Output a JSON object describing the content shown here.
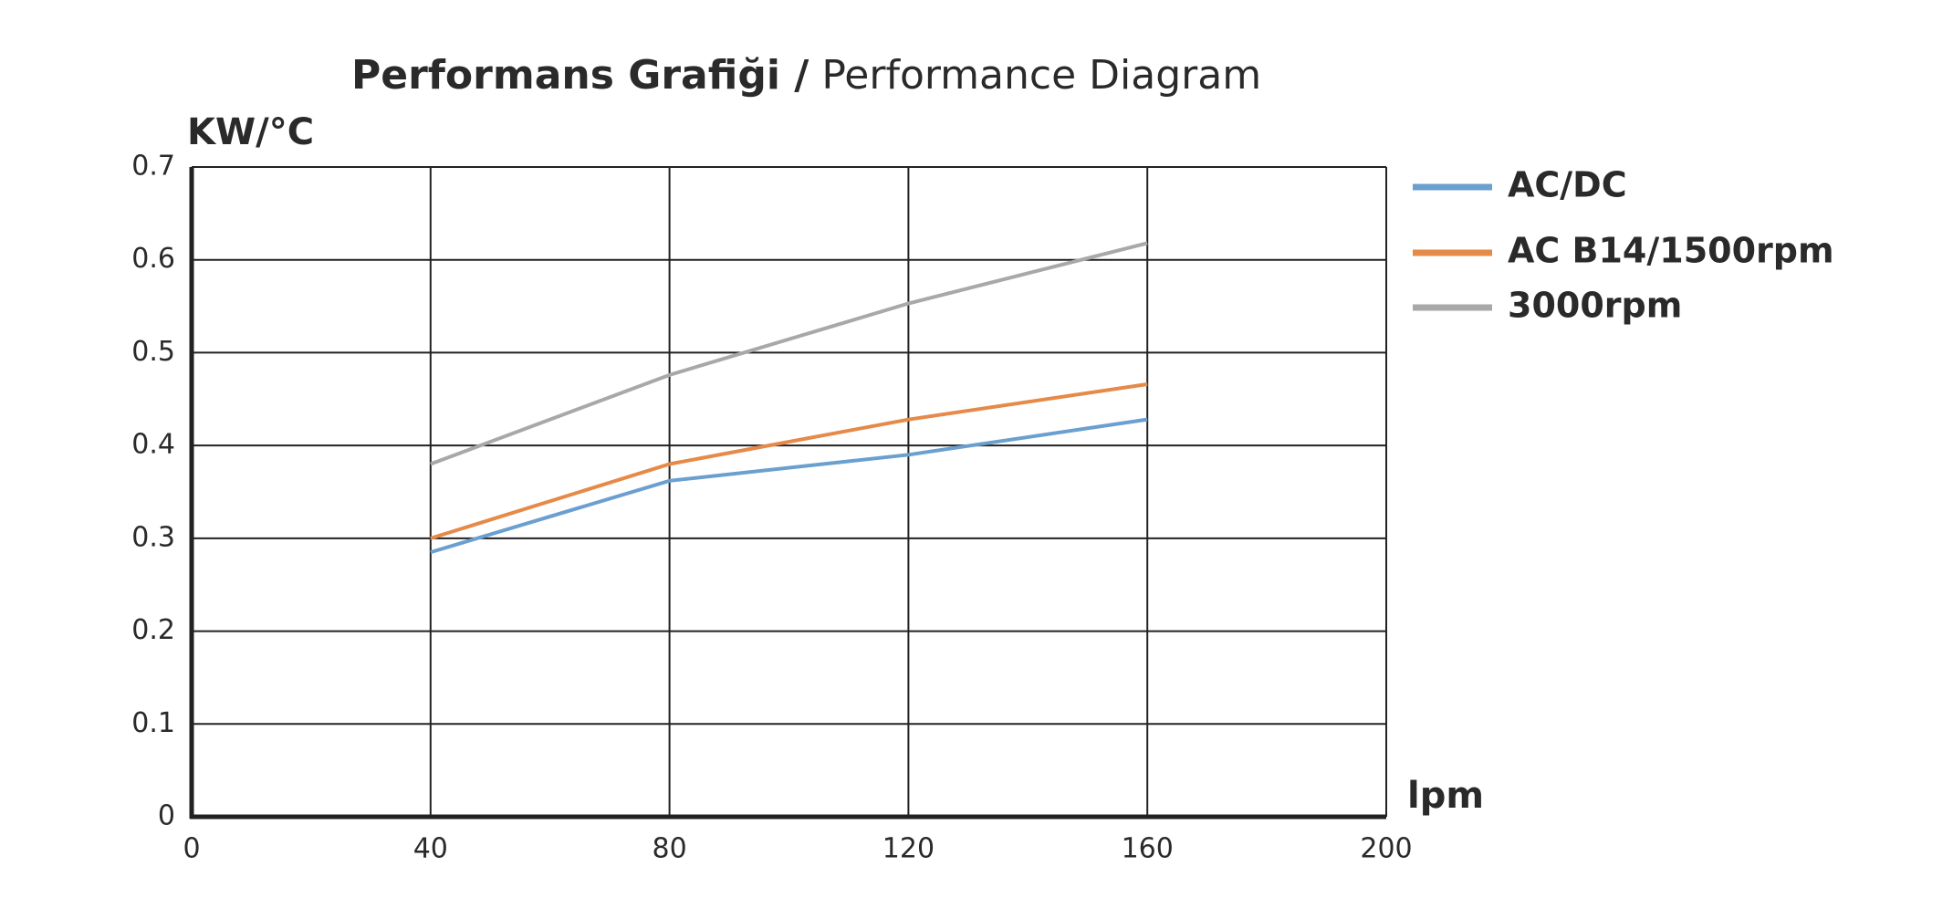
{
  "chart_data": {
    "type": "line",
    "title": "Performans Grafiği /",
    "subtitle": "Performance Diagram",
    "y_label": "KW/°C",
    "x_label": "lpm",
    "x": [
      40,
      80,
      120,
      160
    ],
    "series": [
      {
        "name": "AC/DC",
        "color": "#6a9fcf",
        "values": [
          0.285,
          0.362,
          0.39,
          0.428
        ]
      },
      {
        "name": "AC B14/1500rpm",
        "color": "#e58a48",
        "values": [
          0.3,
          0.38,
          0.428,
          0.466
        ]
      },
      {
        "name": "3000rpm",
        "color": "#a8a8a8",
        "values": [
          0.38,
          0.476,
          0.553,
          0.618
        ]
      }
    ],
    "xlim": [
      0,
      200
    ],
    "xticks": [
      0,
      40,
      80,
      120,
      160,
      200
    ],
    "ylim": [
      0,
      0.7
    ],
    "yticks": [
      0,
      0.1,
      0.2,
      0.3,
      0.4,
      0.5,
      0.6,
      0.7
    ],
    "grid": true,
    "legend": "right"
  }
}
